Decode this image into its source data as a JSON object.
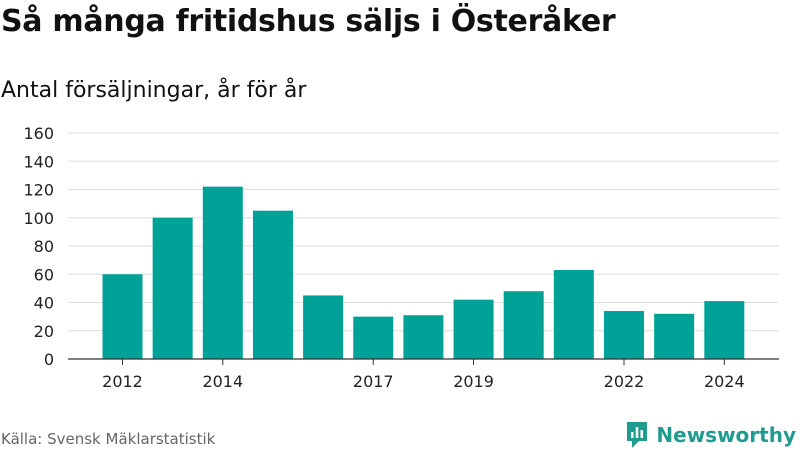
{
  "title": "Så många fritidshus säljs i Österåker",
  "subtitle": "Antal försäljningar, år för år",
  "source": "Källa: Svensk Mäklarstatistik",
  "brand": {
    "name": "Newsworthy",
    "icon": "newsworthy-logo-icon",
    "color": "#1f9c8f"
  },
  "chart_data": {
    "type": "bar",
    "title": "Så många fritidshus säljs i Österåker",
    "subtitle": "Antal försäljningar, år för år",
    "xlabel": "",
    "ylabel": "",
    "categories": [
      "2012",
      "2013",
      "2014",
      "2015",
      "2016",
      "2017",
      "2018",
      "2019",
      "2020",
      "2021",
      "2022",
      "2023",
      "2024"
    ],
    "x_tick_labels": [
      "2012",
      "2014",
      "2017",
      "2019",
      "2022",
      "2024"
    ],
    "y_ticks": [
      "0",
      "20",
      "40",
      "60",
      "80",
      "100",
      "120",
      "140",
      "160"
    ],
    "values": [
      60,
      100,
      122,
      105,
      45,
      30,
      31,
      42,
      48,
      63,
      34,
      32,
      41
    ],
    "ylim": [
      0,
      160
    ],
    "grid": true,
    "bar_color": "#00a298",
    "legend": "none"
  }
}
